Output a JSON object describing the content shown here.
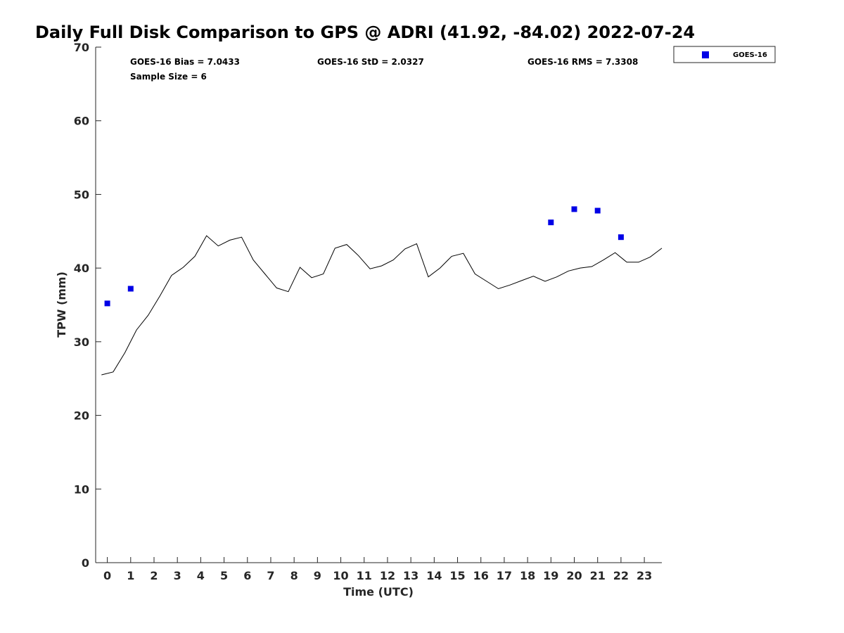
{
  "chart_data": {
    "type": "scatter",
    "title": "Daily Full Disk Comparison to GPS @ ADRI (41.92, -84.02) 2022-07-24",
    "xlabel": "Time (UTC)",
    "ylabel": "TPW (mm)",
    "xlim": [
      -0.5,
      23.75
    ],
    "ylim": [
      0,
      70
    ],
    "x_ticks": [
      0,
      1,
      2,
      3,
      4,
      5,
      6,
      7,
      8,
      9,
      10,
      11,
      12,
      13,
      14,
      15,
      16,
      17,
      18,
      19,
      20,
      21,
      22,
      23
    ],
    "y_ticks": [
      0,
      10,
      20,
      30,
      40,
      50,
      60,
      70
    ],
    "grid": false,
    "legend_position": "top-right",
    "stats": {
      "bias": "GOES-16 Bias = 7.0433",
      "std": "GOES-16 StD = 2.0327",
      "rms": "GOES-16 RMS = 7.3308",
      "sample_size": "Sample Size = 6"
    },
    "series": [
      {
        "name": "GOES-16",
        "marker": "square",
        "color": "#0000e6",
        "x": [
          0,
          1,
          19,
          20,
          21,
          22
        ],
        "y": [
          35.2,
          37.2,
          46.2,
          48.0,
          47.8,
          44.2
        ]
      },
      {
        "kind": "line",
        "color": "#000000",
        "x": [
          -0.25,
          0.25,
          0.75,
          1.25,
          1.75,
          2.25,
          2.75,
          3.25,
          3.75,
          4.25,
          4.75,
          5.25,
          5.75,
          6.25,
          6.75,
          7.25,
          7.75,
          8.25,
          8.75,
          9.25,
          9.75,
          10.25,
          10.75,
          11.25,
          11.75,
          12.25,
          12.75,
          13.25,
          13.75,
          14.25,
          14.75,
          15.25,
          15.75,
          16.25,
          16.75,
          17.25,
          17.75,
          18.25,
          18.75,
          19.25,
          19.75,
          20.25,
          20.75,
          21.25,
          21.75,
          22.25,
          22.75,
          23.25,
          23.75
        ],
        "y": [
          25.5,
          25.9,
          28.5,
          31.6,
          33.6,
          36.2,
          39.0,
          40.1,
          41.6,
          44.4,
          43.0,
          43.8,
          44.2,
          41.1,
          39.2,
          37.3,
          36.8,
          40.1,
          38.7,
          39.2,
          42.7,
          43.2,
          41.7,
          39.9,
          40.3,
          41.1,
          42.6,
          43.3,
          38.8,
          40.0,
          41.6,
          42.0,
          39.2,
          38.2,
          37.2,
          37.7,
          38.3,
          38.9,
          38.2,
          38.8,
          39.6,
          40.0,
          40.2,
          41.1,
          42.1,
          40.8,
          40.8,
          41.5,
          42.7
        ]
      }
    ]
  }
}
